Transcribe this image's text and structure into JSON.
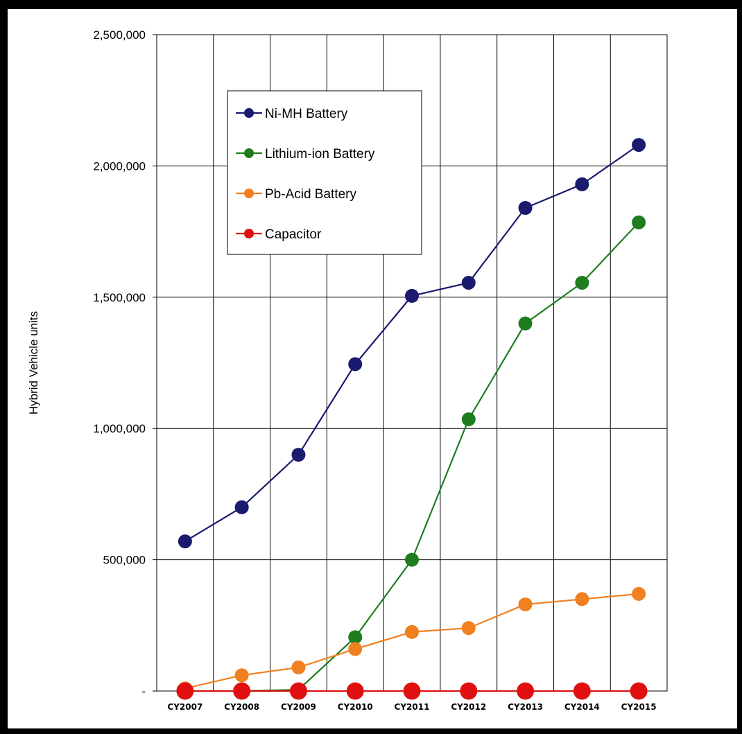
{
  "chart_data": {
    "type": "line",
    "title": "",
    "xlabel": "",
    "ylabel": "Hybrid Vehicle units",
    "categories": [
      "CY2007",
      "CY2008",
      "CY2009",
      "CY2010",
      "CY2011",
      "CY2012",
      "CY2013",
      "CY2014",
      "CY2015"
    ],
    "ylim": [
      0,
      2500000
    ],
    "y_ticks": [
      0,
      500000,
      1000000,
      1500000,
      2000000,
      2500000
    ],
    "y_tick_labels": [
      "-",
      "500,000",
      "1,000,000",
      "1,500,000",
      "2,000,000",
      "2,500,000"
    ],
    "grid": true,
    "legend_position": "upper-left",
    "series": [
      {
        "name": "Ni-MH Battery",
        "color": "#1a1a6e",
        "marker_size": "medium",
        "values": [
          570000,
          700000,
          900000,
          1245000,
          1505000,
          1555000,
          1840000,
          1930000,
          2080000
        ]
      },
      {
        "name": "Lithium-ion Battery",
        "color": "#1e7d1e",
        "marker_size": "medium",
        "values": [
          0,
          0,
          5000,
          205000,
          500000,
          1035000,
          1400000,
          1555000,
          1785000
        ]
      },
      {
        "name": "Pb-Acid Battery",
        "color": "#f08020",
        "marker_size": "medium",
        "values": [
          10000,
          60000,
          90000,
          160000,
          225000,
          240000,
          330000,
          350000,
          370000
        ]
      },
      {
        "name": "Capacitor",
        "color": "#e01010",
        "marker_size": "large",
        "values": [
          0,
          0,
          0,
          0,
          0,
          0,
          0,
          0,
          0
        ]
      }
    ]
  }
}
